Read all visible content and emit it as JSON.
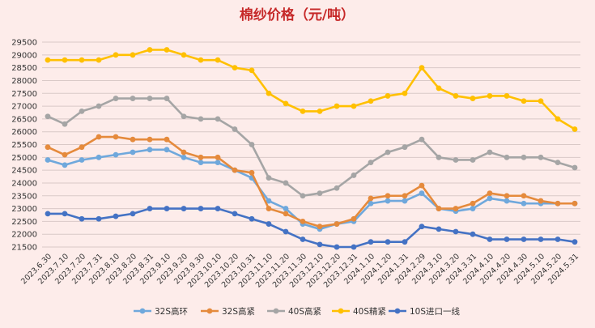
{
  "chart_data": {
    "type": "line",
    "title": "棉纱价格（元/吨）",
    "xlabel": "",
    "ylabel": "",
    "ylim": [
      21500,
      29500
    ],
    "yticks": [
      21500,
      22000,
      22500,
      23000,
      23500,
      24000,
      24500,
      25000,
      25500,
      26000,
      26500,
      27000,
      27500,
      28000,
      28500,
      29000,
      29500
    ],
    "grid": true,
    "legend_position": "bottom",
    "categories": [
      "2023.6.30",
      "2023.7.10",
      "2023.7.20",
      "2023.7.31",
      "2023.8.10",
      "2023.8.20",
      "2023.8.31",
      "2023.9.10",
      "2023.9.20",
      "2023.9.30",
      "2023.10.10",
      "2023.10.20",
      "2023.10.31",
      "2023.11.10",
      "2023.11.20",
      "2023.11.30",
      "2023.12.10",
      "2023.12.20",
      "2023.12.31",
      "2024.1.10",
      "2024.1.20",
      "2024.1.31",
      "2024.2.29",
      "2024.3.10",
      "2024.3.20",
      "2024.3.31",
      "2024.4.10",
      "2024.4.20",
      "2024.4.30",
      "2024.5.10",
      "2024.5.20",
      "2024.5.31"
    ],
    "series": [
      {
        "name": "32S高环",
        "color": "#6fa8dc",
        "values": [
          24900,
          24700,
          24900,
          25000,
          25100,
          25200,
          25300,
          25300,
          25000,
          24800,
          24800,
          24500,
          24200,
          23300,
          23000,
          22400,
          22200,
          22400,
          22500,
          23200,
          23300,
          23300,
          23600,
          23000,
          22900,
          23000,
          23400,
          23300,
          23200,
          23200,
          23200,
          23200
        ]
      },
      {
        "name": "32S高紧",
        "color": "#e58a3c",
        "values": [
          25400,
          25100,
          25400,
          25800,
          25800,
          25700,
          25700,
          25700,
          25200,
          25000,
          25000,
          24500,
          24400,
          23000,
          22800,
          22500,
          22300,
          22400,
          22600,
          23400,
          23500,
          23500,
          23900,
          23000,
          23000,
          23200,
          23600,
          23500,
          23500,
          23300,
          23200,
          23200
        ]
      },
      {
        "name": "40S高紧",
        "color": "#a5a5a5",
        "values": [
          26600,
          26300,
          26800,
          27000,
          27300,
          27300,
          27300,
          27300,
          26600,
          26500,
          26500,
          26100,
          25500,
          24200,
          24000,
          23500,
          23600,
          23800,
          24300,
          24800,
          25200,
          25400,
          25700,
          25000,
          24900,
          24900,
          25200,
          25000,
          25000,
          25000,
          24800,
          24600
        ]
      },
      {
        "name": "40S精紧",
        "color": "#ffc000",
        "values": [
          28800,
          28800,
          28800,
          28800,
          29000,
          29000,
          29200,
          29200,
          29000,
          28800,
          28800,
          28500,
          28400,
          27500,
          27100,
          26800,
          26800,
          27000,
          27000,
          27200,
          27400,
          27500,
          28500,
          27700,
          27400,
          27300,
          27400,
          27400,
          27200,
          27200,
          26500,
          26100
        ]
      },
      {
        "name": "10S进口一线",
        "color": "#4472c4",
        "values": [
          22800,
          22800,
          22600,
          22600,
          22700,
          22800,
          23000,
          23000,
          23000,
          23000,
          23000,
          22800,
          22600,
          22400,
          22100,
          21800,
          21600,
          21500,
          21500,
          21700,
          21700,
          21700,
          22300,
          22200,
          22100,
          22000,
          21800,
          21800,
          21800,
          21800,
          21800,
          21700
        ]
      }
    ]
  }
}
